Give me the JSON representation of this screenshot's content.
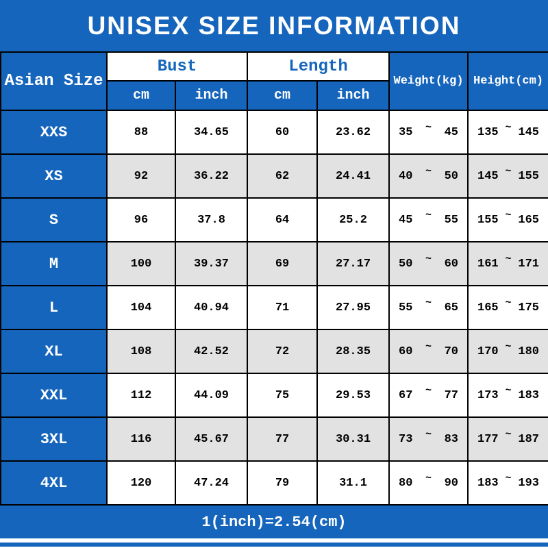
{
  "chart_data": {
    "type": "table",
    "title": "UNISEX SIZE INFORMATION",
    "corner_header": "Asian Size",
    "column_groups": [
      {
        "label": "Bust",
        "subcolumns": [
          "cm",
          "inch"
        ]
      },
      {
        "label": "Length",
        "subcolumns": [
          "cm",
          "inch"
        ]
      }
    ],
    "range_columns": [
      "Weight(kg)",
      "Height(cm)"
    ],
    "range_separator": "~",
    "rows": [
      {
        "size": "XXS",
        "bust_cm": "88",
        "bust_inch": "34.65",
        "length_cm": "60",
        "length_inch": "23.62",
        "weight": [
          "35",
          "45"
        ],
        "height": [
          "135",
          "145"
        ]
      },
      {
        "size": "XS",
        "bust_cm": "92",
        "bust_inch": "36.22",
        "length_cm": "62",
        "length_inch": "24.41",
        "weight": [
          "40",
          "50"
        ],
        "height": [
          "145",
          "155"
        ]
      },
      {
        "size": "S",
        "bust_cm": "96",
        "bust_inch": "37.8",
        "length_cm": "64",
        "length_inch": "25.2",
        "weight": [
          "45",
          "55"
        ],
        "height": [
          "155",
          "165"
        ]
      },
      {
        "size": "M",
        "bust_cm": "100",
        "bust_inch": "39.37",
        "length_cm": "69",
        "length_inch": "27.17",
        "weight": [
          "50",
          "60"
        ],
        "height": [
          "161",
          "171"
        ]
      },
      {
        "size": "L",
        "bust_cm": "104",
        "bust_inch": "40.94",
        "length_cm": "71",
        "length_inch": "27.95",
        "weight": [
          "55",
          "65"
        ],
        "height": [
          "165",
          "175"
        ]
      },
      {
        "size": "XL",
        "bust_cm": "108",
        "bust_inch": "42.52",
        "length_cm": "72",
        "length_inch": "28.35",
        "weight": [
          "60",
          "70"
        ],
        "height": [
          "170",
          "180"
        ]
      },
      {
        "size": "XXL",
        "bust_cm": "112",
        "bust_inch": "44.09",
        "length_cm": "75",
        "length_inch": "29.53",
        "weight": [
          "67",
          "77"
        ],
        "height": [
          "173",
          "183"
        ]
      },
      {
        "size": "3XL",
        "bust_cm": "116",
        "bust_inch": "45.67",
        "length_cm": "77",
        "length_inch": "30.31",
        "weight": [
          "73",
          "83"
        ],
        "height": [
          "177",
          "187"
        ]
      },
      {
        "size": "4XL",
        "bust_cm": "120",
        "bust_inch": "47.24",
        "length_cm": "79",
        "length_inch": "31.1",
        "weight": [
          "80",
          "90"
        ],
        "height": [
          "183",
          "193"
        ]
      }
    ],
    "footer_note": "1(inch)=2.54(cm)",
    "colors": {
      "blue": "#1565bc",
      "row_alt": "#e2e2e2",
      "row": "#ffffff",
      "border": "#000000"
    }
  }
}
